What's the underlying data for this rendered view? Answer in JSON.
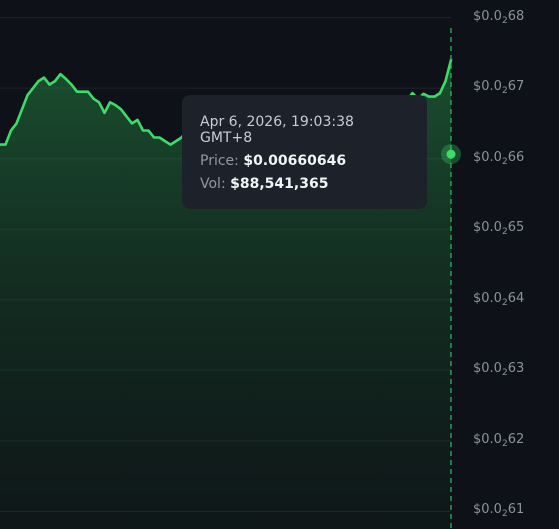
{
  "chart_data": {
    "type": "area",
    "y_tick_labels": [
      {
        "prefix": "$0.0",
        "zeros": "2",
        "digits": "68",
        "value": 0.0068
      },
      {
        "prefix": "$0.0",
        "zeros": "2",
        "digits": "67",
        "value": 0.0067
      },
      {
        "prefix": "$0.0",
        "zeros": "2",
        "digits": "66",
        "value": 0.0066
      },
      {
        "prefix": "$0.0",
        "zeros": "2",
        "digits": "65",
        "value": 0.0065
      },
      {
        "prefix": "$0.0",
        "zeros": "2",
        "digits": "64",
        "value": 0.0064
      },
      {
        "prefix": "$0.0",
        "zeros": "2",
        "digits": "63",
        "value": 0.0063
      },
      {
        "prefix": "$0.0",
        "zeros": "2",
        "digits": "62",
        "value": 0.0062
      },
      {
        "prefix": "$0.0",
        "zeros": "2",
        "digits": "61",
        "value": 0.0061
      }
    ],
    "ylim": [
      0.006075,
      0.006825
    ],
    "grid": true,
    "series": [
      {
        "values": [
          0.00662,
          0.00662,
          0.00664,
          0.00665,
          0.00667,
          0.00669,
          0.0067,
          0.00671,
          0.006715,
          0.006705,
          0.00671,
          0.00672,
          0.006713,
          0.006705,
          0.006695,
          0.006695,
          0.006695,
          0.006685,
          0.00668,
          0.006665,
          0.00668,
          0.006676,
          0.00667,
          0.00666,
          0.00665,
          0.006655,
          0.00664,
          0.00664,
          0.00663,
          0.00663,
          0.006625,
          0.00662,
          0.006625,
          0.00663,
          0.00664,
          0.006635,
          0.00664,
          0.006625,
          0.00662,
          0.006633,
          0.006632,
          0.006632,
          0.006625,
          0.00663,
          0.006637,
          0.006636,
          0.006647,
          0.00664,
          0.006637,
          0.006638,
          0.006634,
          0.006628,
          0.00662,
          0.006619,
          0.006615,
          0.006612,
          0.0066,
          0.00659,
          0.00658,
          0.00657,
          0.006577,
          0.006573,
          0.006575,
          0.00656,
          0.006575,
          0.006575,
          0.006582,
          0.006572,
          0.006575,
          0.006568,
          0.006573,
          0.006573,
          0.006605,
          0.006656,
          0.006683,
          0.006693,
          0.006685,
          0.006692,
          0.006688,
          0.006688,
          0.006693,
          0.00671,
          0.00674
        ]
      }
    ],
    "highlighted_point": {
      "value": 0.00660646
    },
    "colors": {
      "line": "#3ddc68",
      "crosshair": "#2fbf5a",
      "grid": "#1e242d",
      "background": "#0e1117"
    }
  },
  "tooltip": {
    "date": "Apr 6, 2026, 19:03:38 GMT+8",
    "price_label": "Price:",
    "price_value": "$0.00660646",
    "vol_label": "Vol:",
    "vol_value": "$88,541,365"
  }
}
